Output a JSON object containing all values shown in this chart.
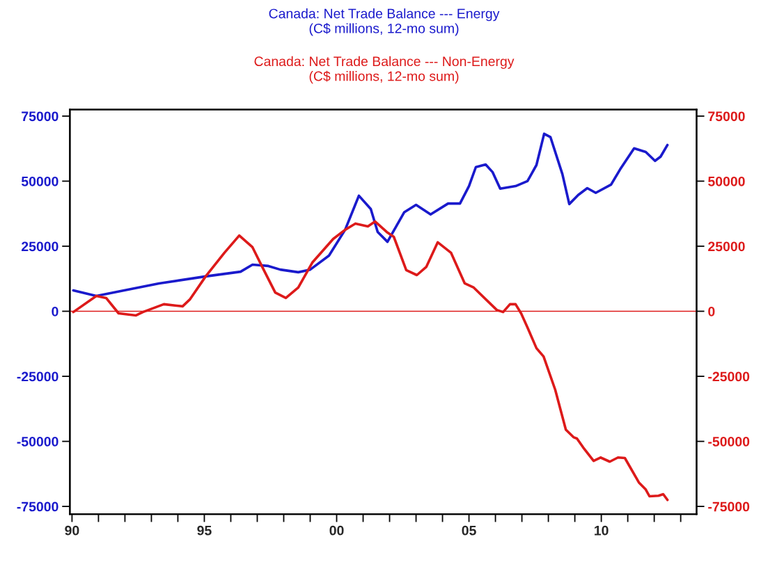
{
  "chart_data": {
    "type": "line",
    "title": "Canada: Net Trade Balance --- Energy\n(C$ millions, 12-mo sum)",
    "subtitle": "Canada: Net Trade Balance --- Non-Energy\n(C$ millions, 12-mo sum)",
    "series": [
      {
        "color": "#1a1acc",
        "axis": "y",
        "x": [
          1990.05,
          1990.92,
          1991.97,
          1993.29,
          1995.05,
          1996.37,
          1996.82,
          1997.42,
          1997.87,
          1998.55,
          1999.0,
          1999.71,
          2000.32,
          2000.84,
          2001.29,
          2001.55,
          2001.92,
          2002.55,
          2003.0,
          2003.55,
          2004.21,
          2004.66,
          2005.0,
          2005.26,
          2005.63,
          2005.89,
          2006.18,
          2006.76,
          2007.21,
          2007.55,
          2007.84,
          2008.08,
          2008.53,
          2008.79,
          2009.13,
          2009.47,
          2009.79,
          2010.37,
          2010.71,
          2011.24,
          2011.68,
          2012.03,
          2012.24,
          2012.5
        ],
        "values": [
          8000,
          5900,
          8000,
          10700,
          13400,
          15200,
          17900,
          17400,
          16000,
          15000,
          16000,
          21400,
          31300,
          44400,
          39300,
          30500,
          26700,
          38000,
          40900,
          37200,
          41400,
          41400,
          48100,
          55400,
          56400,
          53500,
          47100,
          48100,
          50000,
          56200,
          68200,
          66900,
          52700,
          41200,
          44700,
          47300,
          45500,
          48700,
          54500,
          62600,
          61200,
          57800,
          59400,
          63900
        ]
      },
      {
        "color": "#dd1a1a",
        "axis": "y2",
        "x": [
          1990.05,
          1990.92,
          1991.29,
          1991.76,
          1992.42,
          1992.68,
          1993.47,
          1994.18,
          1994.45,
          1995.05,
          1995.76,
          1996.32,
          1996.82,
          1997.24,
          1997.68,
          1998.08,
          1998.55,
          1999.08,
          1999.87,
          2000.32,
          2000.71,
          2001.18,
          2001.45,
          2001.89,
          2002.16,
          2002.63,
          2003.03,
          2003.39,
          2003.82,
          2004.32,
          2004.84,
          2005.18,
          2006.05,
          2006.29,
          2006.55,
          2006.76,
          2006.97,
          2007.21,
          2007.55,
          2007.82,
          2008.26,
          2008.66,
          2008.95,
          2009.08,
          2009.32,
          2009.71,
          2009.97,
          2010.32,
          2010.63,
          2010.89,
          2011.42,
          2011.68,
          2011.82,
          2012.16,
          2012.34,
          2012.5
        ],
        "values": [
          -300,
          5900,
          5100,
          -800,
          -1600,
          -300,
          2700,
          1900,
          4500,
          13400,
          22500,
          29100,
          24600,
          16000,
          7200,
          5100,
          9100,
          18700,
          27800,
          31300,
          33700,
          32600,
          34500,
          30500,
          28600,
          15800,
          13900,
          17100,
          26500,
          22500,
          10700,
          9100,
          500,
          -300,
          2700,
          2700,
          -800,
          -6200,
          -14200,
          -17400,
          -30200,
          -45500,
          -48400,
          -48900,
          -52400,
          -57500,
          -56200,
          -57800,
          -56200,
          -56400,
          -65800,
          -68500,
          -71100,
          -70900,
          -70300,
          -72500
        ]
      }
    ],
    "xlim": [
      1989.92,
      2013.6
    ],
    "xticks": [
      {
        "value": 1990,
        "label": "90"
      },
      {
        "value": 1991,
        "label": null
      },
      {
        "value": 1992,
        "label": null
      },
      {
        "value": 1993,
        "label": null
      },
      {
        "value": 1994,
        "label": null
      },
      {
        "value": 1995,
        "label": "95"
      },
      {
        "value": 1996,
        "label": null
      },
      {
        "value": 1997,
        "label": null
      },
      {
        "value": 1998,
        "label": null
      },
      {
        "value": 1999,
        "label": null
      },
      {
        "value": 2000,
        "label": "00"
      },
      {
        "value": 2001,
        "label": null
      },
      {
        "value": 2002,
        "label": null
      },
      {
        "value": 2003,
        "label": null
      },
      {
        "value": 2004,
        "label": null
      },
      {
        "value": 2005,
        "label": "05"
      },
      {
        "value": 2006,
        "label": null
      },
      {
        "value": 2007,
        "label": null
      },
      {
        "value": 2008,
        "label": null
      },
      {
        "value": 2009,
        "label": null
      },
      {
        "value": 2010,
        "label": "10"
      },
      {
        "value": 2011,
        "label": null
      },
      {
        "value": 2012,
        "label": null
      },
      {
        "value": 2013,
        "label": null
      }
    ],
    "ylim": [
      -78000,
      77500
    ],
    "yticks": [
      -75000,
      -50000,
      -25000,
      0,
      25000,
      50000,
      75000
    ],
    "y2lim": [
      -78000,
      77500
    ],
    "y2ticks": [
      -75000,
      -50000,
      -25000,
      0,
      25000,
      50000,
      75000
    ],
    "ref_lines": [
      {
        "axis": "y2",
        "value": 0,
        "color": "#dd1a1a"
      }
    ],
    "grid": false,
    "legend": false,
    "line_style": "solid",
    "marker": "none"
  }
}
